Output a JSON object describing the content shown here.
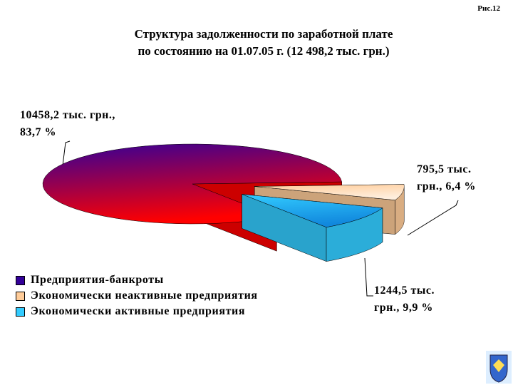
{
  "chart_data": {
    "type": "pie",
    "annotation": "Рис.12",
    "title": "Структура задолженности по заработной плате",
    "subtitle": "по состоянию на 01.07.05 г. (12 498,2 тыс. грн.)",
    "categories": [
      "Предприятия-банкроты",
      "Экономически неактивные предприятия",
      "Экономически активные предприятия"
    ],
    "values": [
      83.7,
      6.4,
      9.9
    ],
    "value_labels": [
      "10458,2 тыс. грн., 83,7 %",
      "795,5 тыс. грн., 6,4 %",
      "1244,5 тыс. грн., 9,9 %"
    ],
    "colors": [
      "#330099",
      "#ffcc99",
      "#33ccff"
    ],
    "exploded": [
      false,
      true,
      true
    ],
    "legend": "bottom-left"
  }
}
